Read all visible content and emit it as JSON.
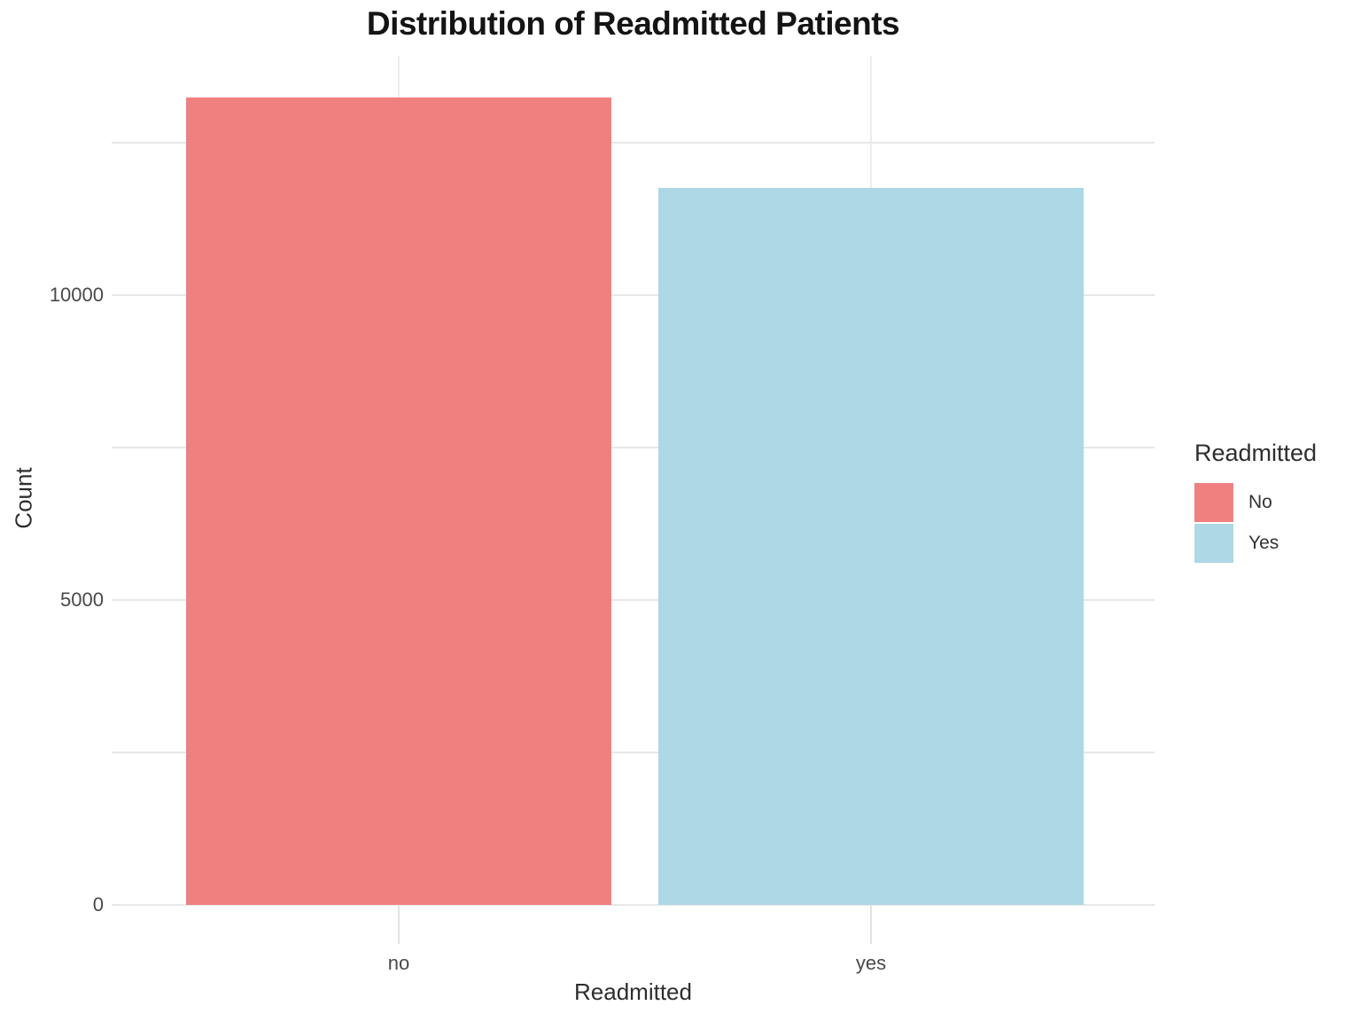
{
  "title": "Distribution of Readmitted Patients",
  "chart_data": {
    "type": "bar",
    "title": "Distribution of Readmitted Patients",
    "xlabel": "Readmitted",
    "ylabel": "Count",
    "categories": [
      "no",
      "yes"
    ],
    "series": [
      {
        "name": "No",
        "category": "no",
        "value": 13240,
        "color": "#F08080"
      },
      {
        "name": "Yes",
        "category": "yes",
        "value": 11760,
        "color": "#ADD8E6"
      }
    ],
    "ylim": [
      0,
      13930
    ],
    "yticks": [
      0,
      5000,
      10000
    ],
    "ytick_labels": [
      "0",
      "5000",
      "10000"
    ],
    "minor_gridlines": [
      2500,
      7500,
      12500
    ],
    "grid": true,
    "legend": {
      "title": "Readmitted",
      "position": "right",
      "entries": [
        {
          "label": "No",
          "color": "#F08080"
        },
        {
          "label": "Yes",
          "color": "#ADD8E6"
        }
      ]
    }
  }
}
